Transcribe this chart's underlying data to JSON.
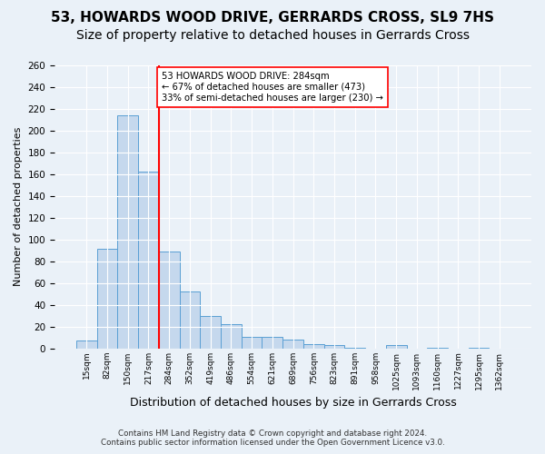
{
  "title": "53, HOWARDS WOOD DRIVE, GERRARDS CROSS, SL9 7HS",
  "subtitle": "Size of property relative to detached houses in Gerrards Cross",
  "xlabel": "Distribution of detached houses by size in Gerrards Cross",
  "ylabel": "Number of detached properties",
  "footer_line1": "Contains HM Land Registry data © Crown copyright and database right 2024.",
  "footer_line2": "Contains public sector information licensed under the Open Government Licence v3.0.",
  "bar_labels": [
    "15sqm",
    "82sqm",
    "150sqm",
    "217sqm",
    "284sqm",
    "352sqm",
    "419sqm",
    "486sqm",
    "554sqm",
    "621sqm",
    "689sqm",
    "756sqm",
    "823sqm",
    "891sqm",
    "958sqm",
    "1025sqm",
    "1093sqm",
    "1160sqm",
    "1227sqm",
    "1295sqm",
    "1362sqm"
  ],
  "bar_values": [
    7,
    91,
    214,
    162,
    89,
    52,
    30,
    22,
    11,
    11,
    8,
    4,
    3,
    1,
    0,
    3,
    0,
    1,
    0,
    1,
    0
  ],
  "bar_color": "#c5d8ed",
  "bar_edge_color": "#5a9fd4",
  "ref_line_bin": 4,
  "ref_line_color": "red",
  "annotation_text": "53 HOWARDS WOOD DRIVE: 284sqm\n← 67% of detached houses are smaller (473)\n33% of semi-detached houses are larger (230) →",
  "annotation_box_color": "white",
  "annotation_box_edge": "red",
  "ylim": [
    0,
    260
  ],
  "yticks": [
    0,
    20,
    40,
    60,
    80,
    100,
    120,
    140,
    160,
    180,
    200,
    220,
    240,
    260
  ],
  "bg_color": "#eaf1f8",
  "plot_bg_color": "#eaf1f8",
  "grid_color": "white",
  "title_fontsize": 11,
  "subtitle_fontsize": 10
}
